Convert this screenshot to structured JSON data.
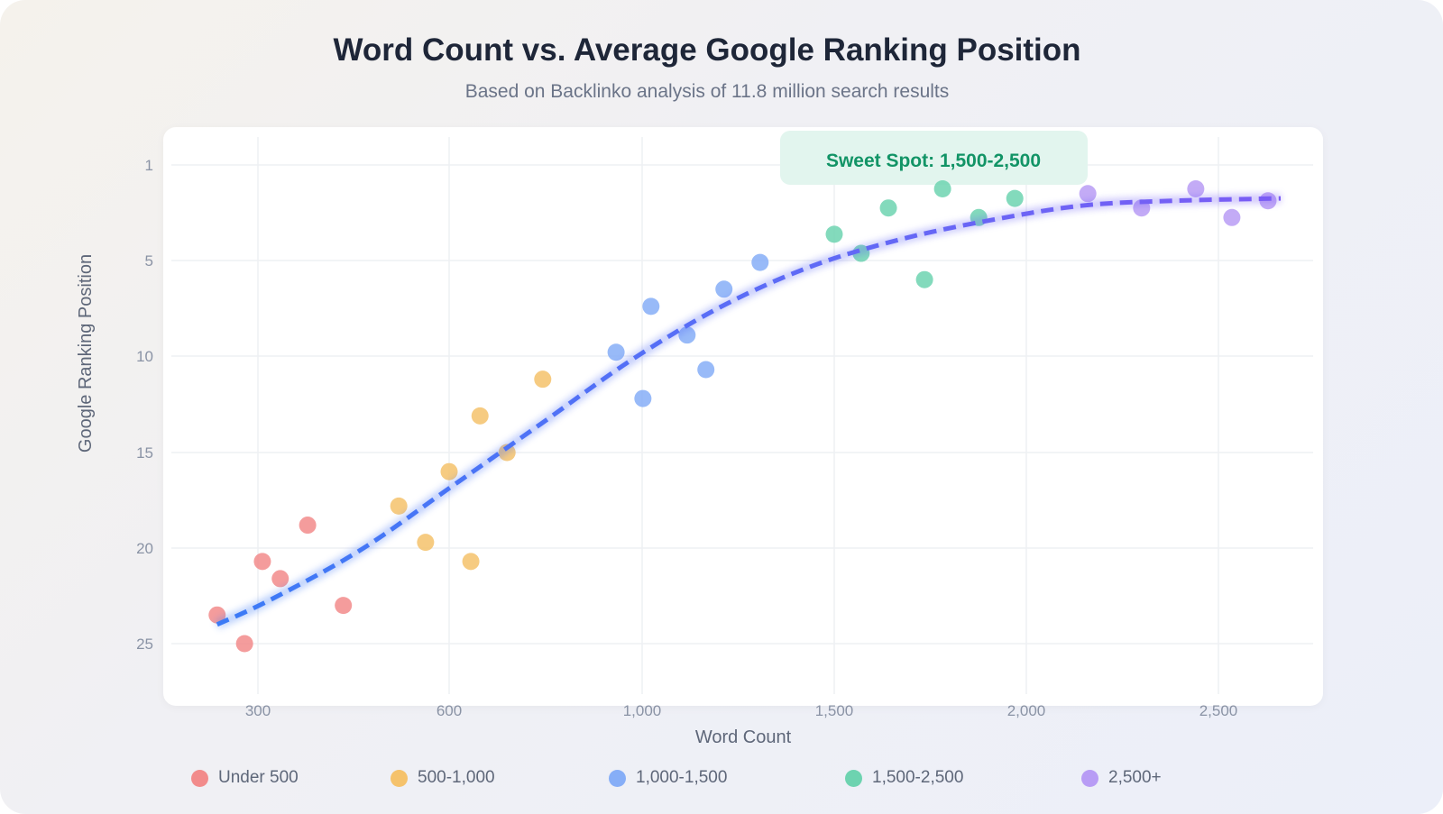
{
  "chart_data": {
    "type": "scatter",
    "title": "Word Count vs. Average Google Ranking Position",
    "subtitle": "Based on Backlinko analysis of 11.8 million search results",
    "xlabel": "Word Count",
    "ylabel": "Google Ranking Position",
    "x_ticks": [
      300,
      600,
      1000,
      1500,
      2000,
      2500
    ],
    "x_tick_labels": [
      "300",
      "600",
      "1,000",
      "1,500",
      "2,000",
      "2,500"
    ],
    "y_ticks": [
      1,
      5,
      10,
      15,
      20,
      25
    ],
    "y_tick_labels": [
      "1",
      "5",
      "10",
      "15",
      "20",
      "25"
    ],
    "y_inverted": true,
    "grid": true,
    "legend_position": "bottom",
    "annotation": "Sweet Spot: 1,500-2,500",
    "series": [
      {
        "name": "Under 500",
        "color": "#f28b8b",
        "points": [
          [
            236,
            23.5
          ],
          [
            279,
            25.0
          ],
          [
            307,
            20.7
          ],
          [
            335,
            21.6
          ],
          [
            378,
            18.8
          ],
          [
            434,
            23.0
          ]
        ]
      },
      {
        "name": "500-1,000",
        "color": "#f5c26b",
        "points": [
          [
            521,
            17.8
          ],
          [
            563,
            19.7
          ],
          [
            600,
            16.0
          ],
          [
            645,
            20.7
          ],
          [
            664,
            13.1
          ],
          [
            720,
            15.0
          ],
          [
            794,
            11.2
          ]
        ]
      },
      {
        "name": "1,000-1,500",
        "color": "#86aef7",
        "points": [
          [
            946,
            9.8
          ],
          [
            1002,
            12.2
          ],
          [
            1023,
            7.4
          ],
          [
            1117,
            8.9
          ],
          [
            1166,
            10.7
          ],
          [
            1213,
            6.5
          ],
          [
            1307,
            5.1
          ]
        ]
      },
      {
        "name": "1,500-2,500",
        "color": "#6dd3b0",
        "points": [
          [
            1500,
            3.9
          ],
          [
            1570,
            4.7
          ],
          [
            1641,
            2.8
          ],
          [
            1735,
            6.0
          ],
          [
            1782,
            2.0
          ],
          [
            1876,
            3.2
          ],
          [
            1970,
            2.4
          ]
        ]
      },
      {
        "name": "2,500+",
        "color": "#b89cf5",
        "points": [
          [
            2160,
            2.2
          ],
          [
            2300,
            2.8
          ],
          [
            2441,
            2.0
          ],
          [
            2535,
            3.2
          ],
          [
            2629,
            2.5
          ]
        ]
      }
    ],
    "trendline": {
      "style": "dashed",
      "colors": [
        "#3b7bf6",
        "#7b5cf5"
      ],
      "points": [
        [
          236,
          24.0
        ],
        [
          320,
          22.7
        ],
        [
          461,
          20.1
        ],
        [
          604,
          16.8
        ],
        [
          791,
          13.5
        ],
        [
          978,
          10.2
        ],
        [
          1207,
          7.4
        ],
        [
          1441,
          5.3
        ],
        [
          1676,
          4.1
        ],
        [
          1911,
          3.3
        ],
        [
          2146,
          2.7
        ],
        [
          2380,
          2.5
        ],
        [
          2662,
          2.4
        ]
      ]
    }
  }
}
